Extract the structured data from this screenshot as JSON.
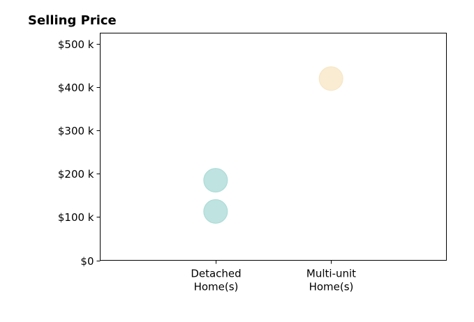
{
  "chart_data": {
    "type": "scatter",
    "title": "Selling Price",
    "xlabel": "",
    "ylabel": "",
    "categories": [
      [
        "Detached",
        "Home(s)"
      ],
      [
        "Multi-unit",
        "Home(s)"
      ]
    ],
    "xlim": [
      -1,
      2
    ],
    "ylim": [
      0,
      525000
    ],
    "y_ticks": [
      {
        "value": 0,
        "label": "$0"
      },
      {
        "value": 100000,
        "label": "$100 k"
      },
      {
        "value": 200000,
        "label": "$200 k"
      },
      {
        "value": 300000,
        "label": "$300 k"
      },
      {
        "value": 400000,
        "label": "$400 k"
      },
      {
        "value": 500000,
        "label": "$500 k"
      }
    ],
    "points": [
      {
        "category": 0,
        "y": 113000,
        "color": "#a8dad6"
      },
      {
        "category": 0,
        "y": 185000,
        "color": "#a8dad6"
      },
      {
        "category": 1,
        "y": 420000,
        "color": "#f7e5c3"
      }
    ],
    "grid": false,
    "legend": "none"
  }
}
